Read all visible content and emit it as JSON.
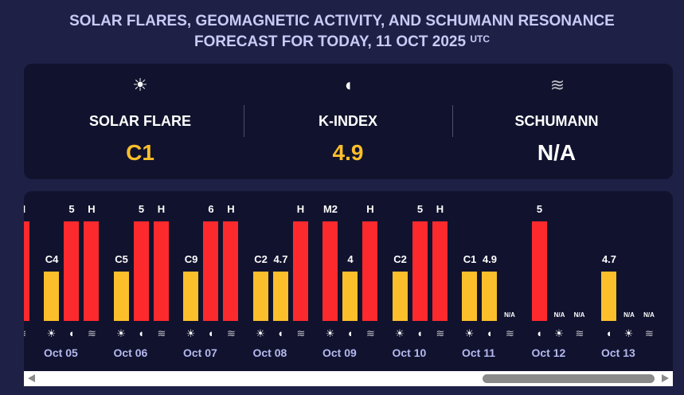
{
  "title": {
    "line1": "SOLAR FLARES, GEOMAGNETIC ACTIVITY, AND SCHUMANN RESONANCE",
    "line2": "FORECAST FOR TODAY, 11 OCT 2025",
    "tz": "UTC"
  },
  "summary": [
    {
      "icon": "sun-icon",
      "glyph": "☀",
      "label": "SOLAR FLARE",
      "value": "C1",
      "color": "#fbbf2b"
    },
    {
      "icon": "magnet-icon",
      "glyph": "◖",
      "label": "K-INDEX",
      "value": "4.9",
      "color": "#fbbf2b"
    },
    {
      "icon": "waves-icon",
      "glyph": "≋",
      "label": "SCHUMANN",
      "value": "N/A",
      "color": "#ffffff"
    }
  ],
  "colors": {
    "moderate": "#fbbf2b",
    "high": "#fd2a2d"
  },
  "days": [
    {
      "date": "",
      "items": [
        null,
        null,
        {
          "type": "schumann",
          "label": "H",
          "level": "high"
        }
      ]
    },
    {
      "date": "Oct 05",
      "items": [
        {
          "type": "flare",
          "label": "C4",
          "level": "moderate"
        },
        {
          "type": "kindex",
          "label": "5",
          "level": "high"
        },
        {
          "type": "schumann",
          "label": "H",
          "level": "high"
        }
      ]
    },
    {
      "date": "Oct 06",
      "items": [
        {
          "type": "flare",
          "label": "C5",
          "level": "moderate"
        },
        {
          "type": "kindex",
          "label": "5",
          "level": "high"
        },
        {
          "type": "schumann",
          "label": "H",
          "level": "high"
        }
      ]
    },
    {
      "date": "Oct 07",
      "items": [
        {
          "type": "flare",
          "label": "C9",
          "level": "moderate"
        },
        {
          "type": "kindex",
          "label": "6",
          "level": "high"
        },
        {
          "type": "schumann",
          "label": "H",
          "level": "high"
        }
      ]
    },
    {
      "date": "Oct 08",
      "items": [
        {
          "type": "flare",
          "label": "C2",
          "level": "moderate"
        },
        {
          "type": "kindex",
          "label": "4.7",
          "level": "moderate"
        },
        {
          "type": "schumann",
          "label": "H",
          "level": "high"
        }
      ]
    },
    {
      "date": "Oct 09",
      "items": [
        {
          "type": "flare",
          "label": "M2",
          "level": "high"
        },
        {
          "type": "kindex",
          "label": "4",
          "level": "moderate"
        },
        {
          "type": "schumann",
          "label": "H",
          "level": "high"
        }
      ]
    },
    {
      "date": "Oct 10",
      "items": [
        {
          "type": "flare",
          "label": "C2",
          "level": "moderate"
        },
        {
          "type": "kindex",
          "label": "5",
          "level": "high"
        },
        {
          "type": "schumann",
          "label": "H",
          "level": "high"
        }
      ]
    },
    {
      "date": "Oct 11",
      "items": [
        {
          "type": "flare",
          "label": "C1",
          "level": "moderate"
        },
        {
          "type": "kindex",
          "label": "4.9",
          "level": "moderate"
        },
        {
          "type": "schumann",
          "label": "N/A",
          "level": "none"
        }
      ]
    },
    {
      "date": "Oct 12",
      "items": [
        {
          "type": "kindex",
          "label": "5",
          "level": "high"
        },
        {
          "type": "flare",
          "label": "N/A",
          "level": "none"
        },
        {
          "type": "schumann",
          "label": "N/A",
          "level": "none"
        }
      ]
    },
    {
      "date": "Oct 13",
      "items": [
        {
          "type": "kindex",
          "label": "4.7",
          "level": "moderate"
        },
        {
          "type": "flare",
          "label": "N/A",
          "level": "none"
        },
        {
          "type": "schumann",
          "label": "N/A",
          "level": "none"
        }
      ]
    }
  ]
}
